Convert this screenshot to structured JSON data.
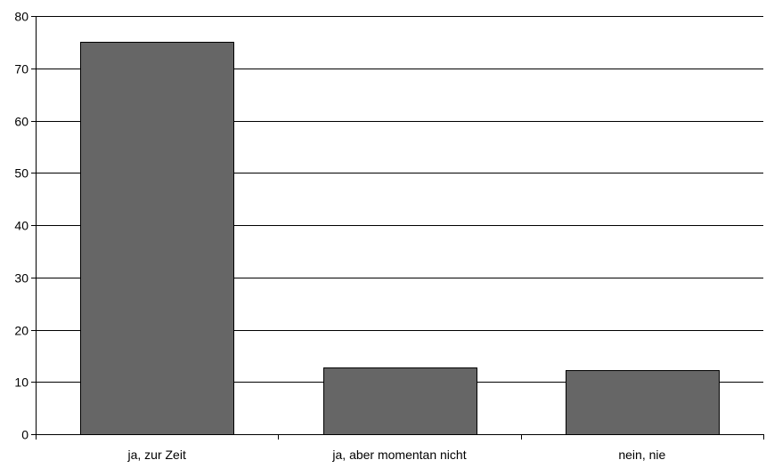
{
  "chart_data": {
    "type": "bar",
    "categories": [
      "ja, zur Zeit",
      "ja, aber momentan nicht",
      "nein, nie"
    ],
    "values": [
      75,
      12.7,
      12.3
    ],
    "ylim": [
      0,
      80
    ],
    "yticks": [
      0,
      10,
      20,
      30,
      40,
      50,
      60,
      70,
      80
    ],
    "grid": true,
    "bar_color": "#666666",
    "bar_edge_color": "#000000",
    "grid_color": "#000000",
    "legend": "none"
  }
}
